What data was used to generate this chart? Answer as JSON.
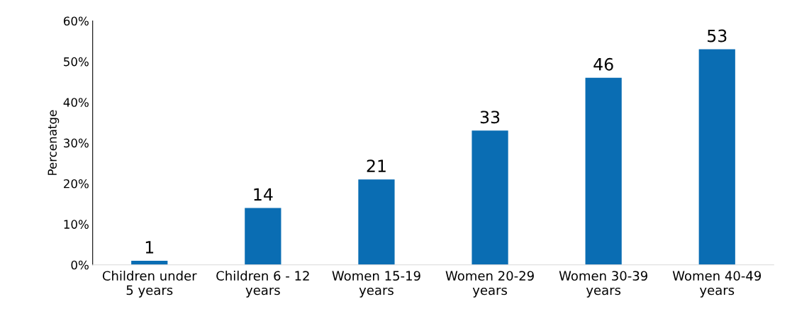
{
  "chart_data": {
    "type": "bar",
    "ylabel": "Percenatge",
    "categories": [
      "Children under\n5 years",
      "Children 6 - 12\nyears",
      "Women 15-19\nyears",
      "Women 20-29\nyears",
      "Women 30-39\nyears",
      "Women 40-49\nyears"
    ],
    "values": [
      1,
      14,
      21,
      33,
      46,
      53
    ],
    "color": "#0a6db3",
    "ylim": [
      0,
      60
    ],
    "yticks": [
      {
        "value": 0,
        "label": "0%"
      },
      {
        "value": 10,
        "label": "10%"
      },
      {
        "value": 20,
        "label": "20%"
      },
      {
        "value": 30,
        "label": "30%"
      },
      {
        "value": 40,
        "label": "40%"
      },
      {
        "value": 50,
        "label": "50%"
      },
      {
        "value": 60,
        "label": "60%"
      }
    ],
    "data_labels": true,
    "grid": false,
    "legend": false
  }
}
